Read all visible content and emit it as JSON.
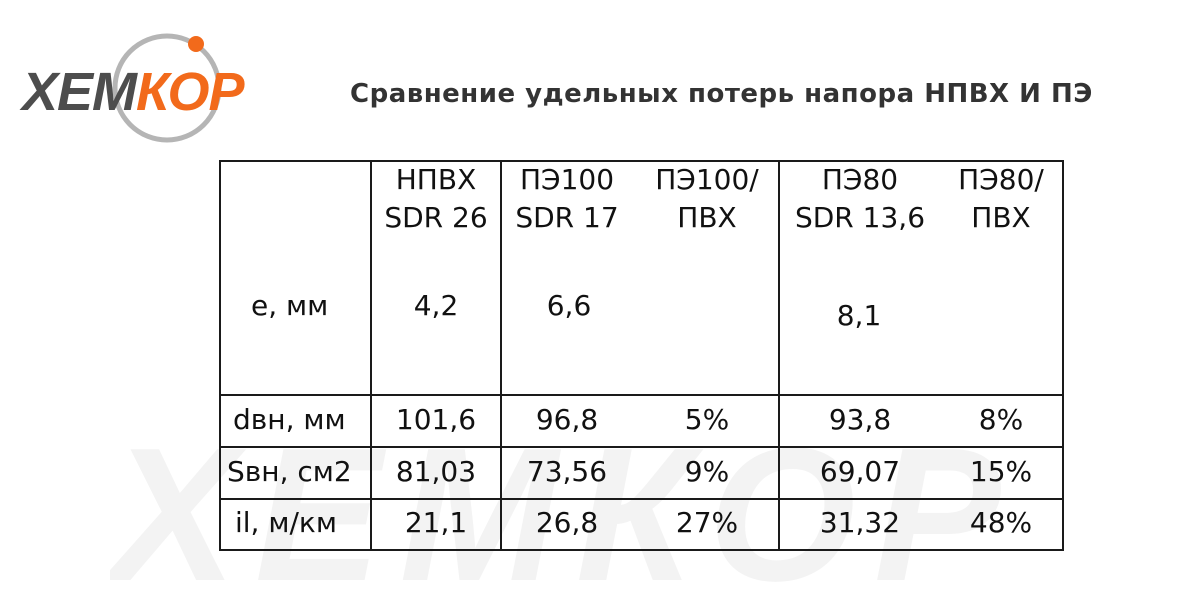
{
  "logo": {
    "text_part1": "ХЕМ",
    "text_part2": "КОР"
  },
  "title": "Сравнение удельных потерь напора НПВХ И ПЭ",
  "watermark": "ХЕМКОР",
  "table": {
    "headers": [
      {
        "line1": "НПВХ",
        "line2": "SDR 26"
      },
      {
        "line1": "ПЭ100",
        "line2": "SDR 17"
      },
      {
        "line1": "ПЭ100/",
        "line2": "ПВХ"
      },
      {
        "line1": "ПЭ80",
        "line2": "SDR 13,6"
      },
      {
        "line1": "ПЭ80/",
        "line2": "ПВХ"
      }
    ],
    "rows": [
      {
        "label": "е, мм",
        "values": [
          "4,2",
          "6,6",
          "",
          "8,1",
          ""
        ]
      },
      {
        "label": "dвн, мм",
        "values": [
          "101,6",
          "96,8",
          "5%",
          "93,8",
          "8%"
        ]
      },
      {
        "label": "Sвн, см2",
        "values": [
          "81,03",
          "73,56",
          "9%",
          "69,07",
          "15%"
        ]
      },
      {
        "label": "il, м/км",
        "values": [
          "21,1",
          "26,8",
          "27%",
          "31,32",
          "48%"
        ]
      }
    ]
  }
}
